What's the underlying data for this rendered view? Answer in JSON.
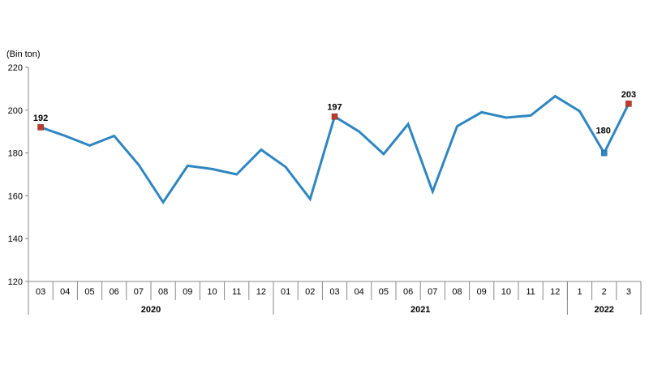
{
  "chart_data": {
    "type": "line",
    "ylabel": "(Bin ton)",
    "ylim": [
      120,
      220
    ],
    "yticks": [
      120,
      140,
      160,
      180,
      200,
      220
    ],
    "grid": false,
    "line_color": "#2E86C1",
    "highlight_color": "#C0392B",
    "highlight_low_color": "#2E86C1",
    "categories": [
      "03",
      "04",
      "05",
      "06",
      "07",
      "08",
      "09",
      "10",
      "11",
      "12",
      "01",
      "02",
      "03",
      "04",
      "05",
      "06",
      "07",
      "08",
      "09",
      "10",
      "11",
      "12",
      "1",
      "2",
      "3"
    ],
    "years": [
      {
        "label": "2020",
        "start": 0,
        "end": 9
      },
      {
        "label": "2021",
        "start": 10,
        "end": 21
      },
      {
        "label": "2022",
        "start": 22,
        "end": 24
      }
    ],
    "series": [
      {
        "values": [
          192,
          188,
          183.5,
          188,
          174.5,
          157,
          174,
          172.5,
          170,
          181.5,
          173.5,
          158.5,
          197,
          190,
          179.5,
          193.5,
          162,
          192.5,
          199,
          196.5,
          197.5,
          206.5,
          199.5,
          180,
          203
        ]
      }
    ],
    "data_labels": [
      {
        "index": 0,
        "text": "192",
        "marker": "red"
      },
      {
        "index": 12,
        "text": "197",
        "marker": "red"
      },
      {
        "index": 23,
        "text": "180",
        "marker": "blue"
      },
      {
        "index": 24,
        "text": "203",
        "marker": "red"
      }
    ]
  }
}
